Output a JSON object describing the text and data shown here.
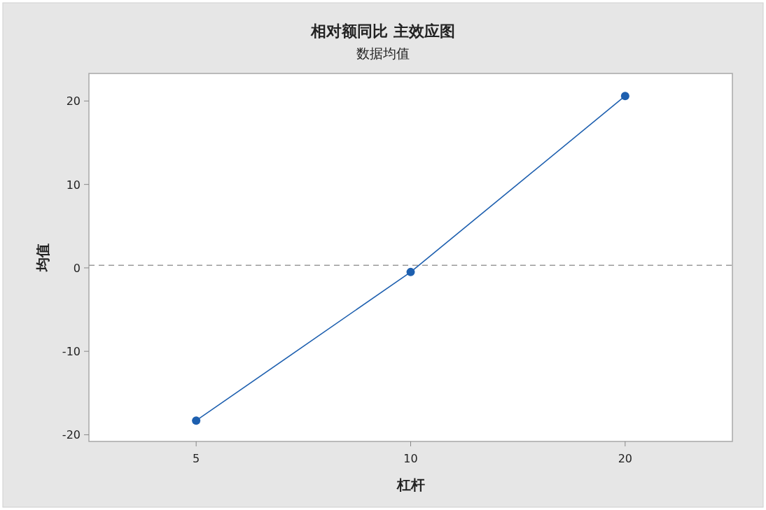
{
  "chart_data": {
    "type": "line",
    "title": "相对额同比 主效应图",
    "subtitle": "数据均值",
    "xlabel": "杠杆",
    "ylabel": "均值",
    "categories": [
      "5",
      "10",
      "20"
    ],
    "values": [
      -18.3,
      -0.5,
      20.6
    ],
    "color": "#1d5faf",
    "marker": "circle",
    "line_style": "solid",
    "ylim": [
      -20.8,
      23.3
    ],
    "yticks": [
      -20,
      -10,
      0,
      10,
      20
    ],
    "ref_lines": [
      {
        "axis": "y",
        "value": 0.3,
        "color": "#9a9a9a",
        "line_style": "dashed"
      }
    ]
  }
}
